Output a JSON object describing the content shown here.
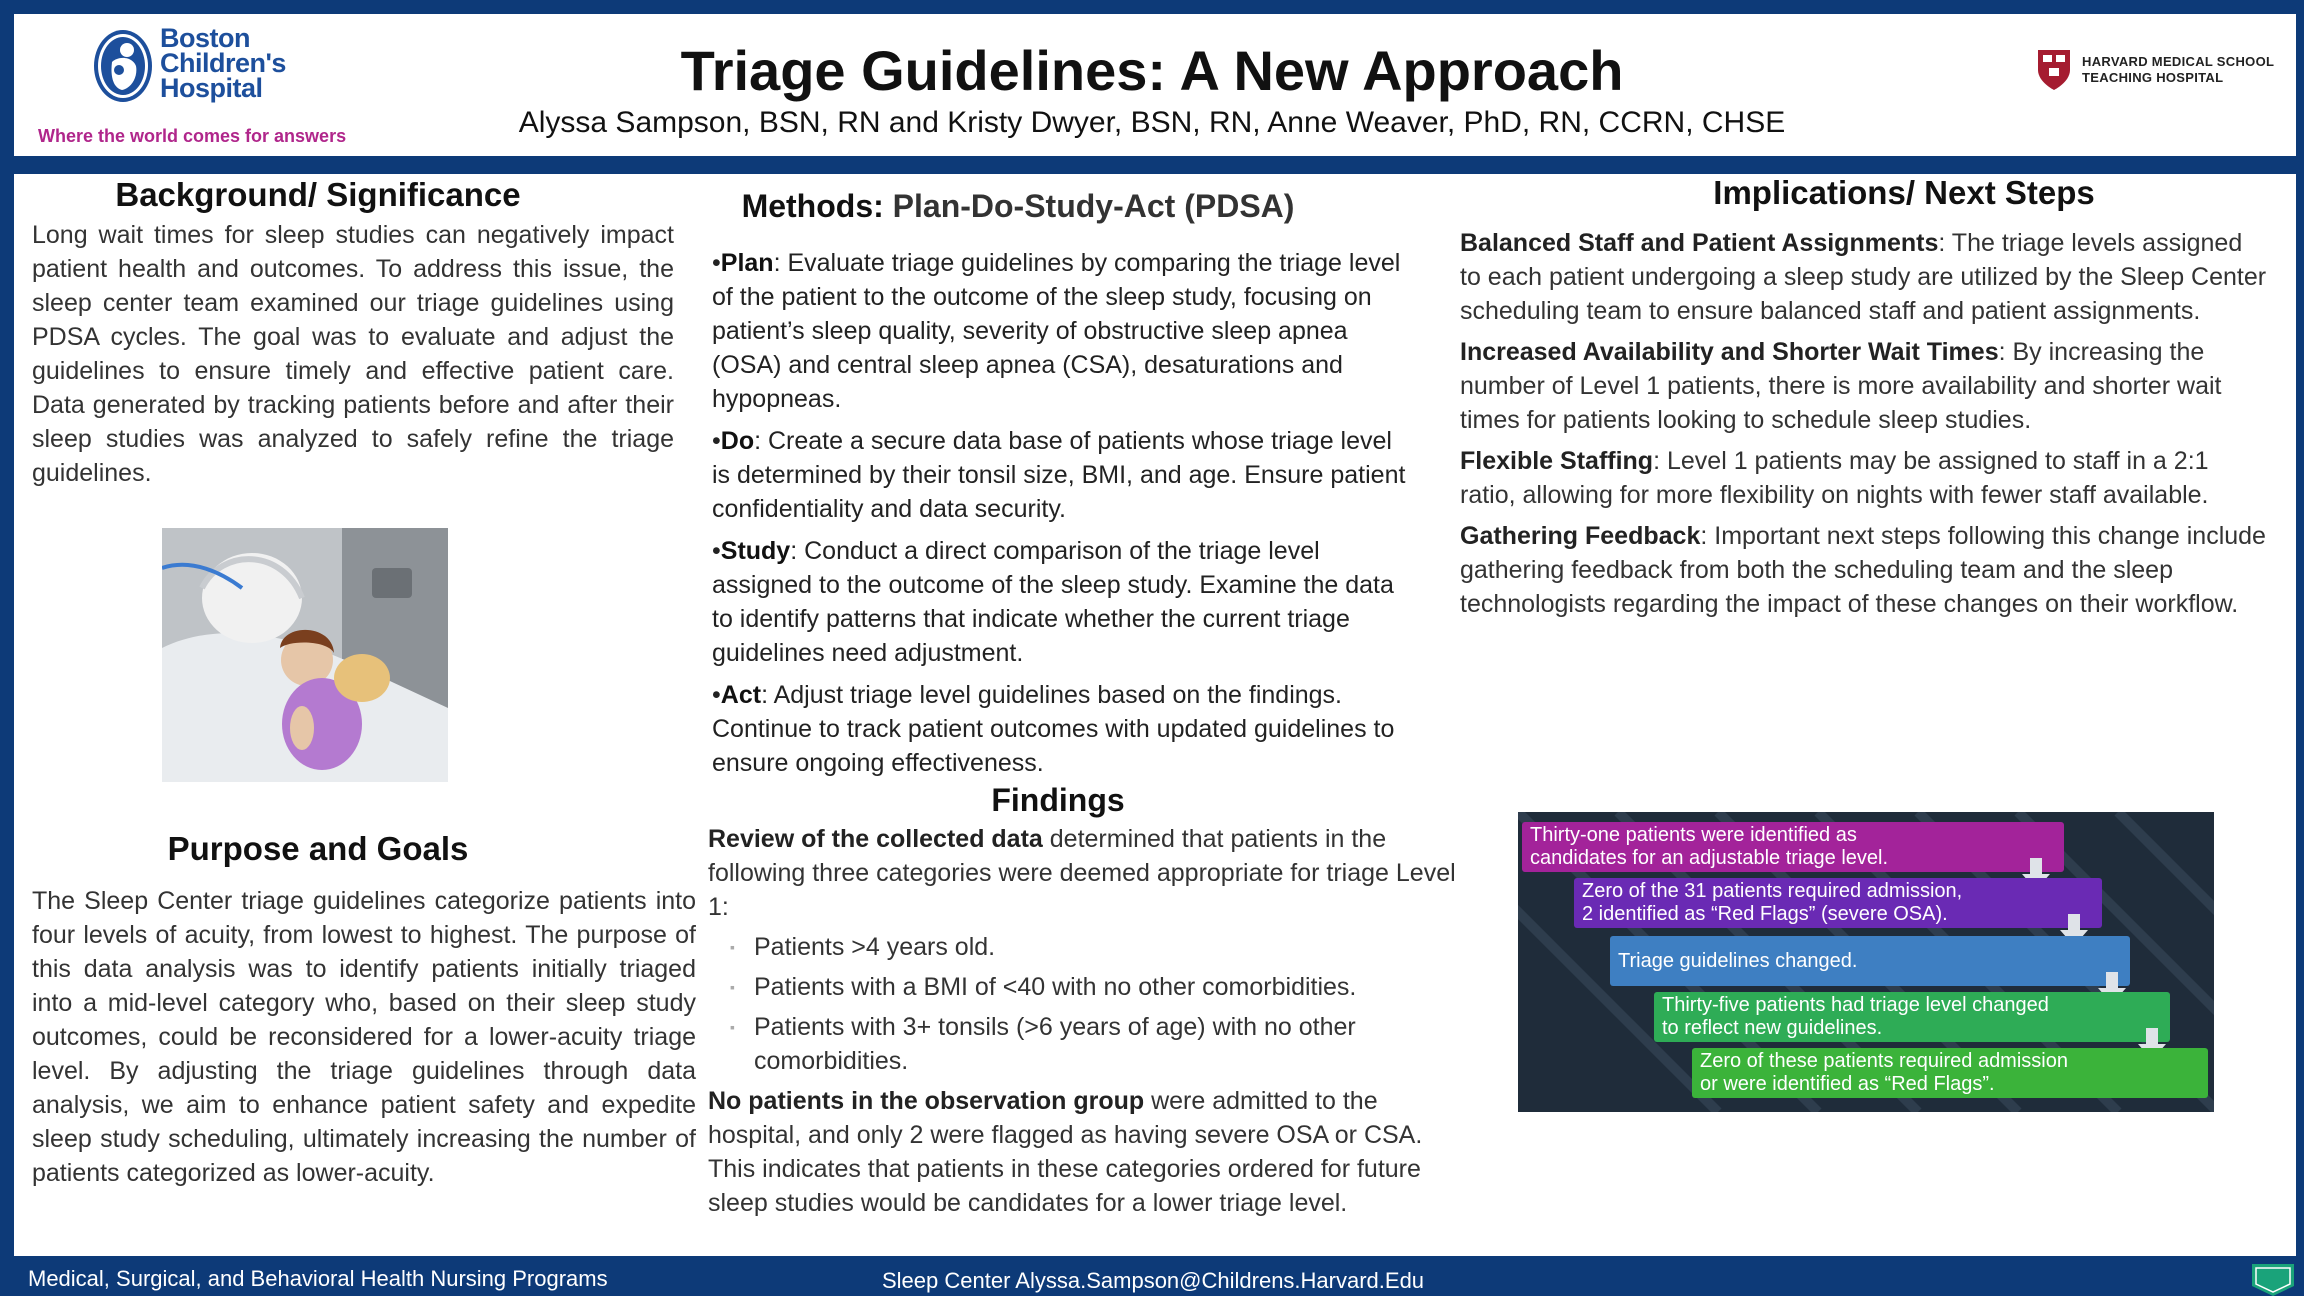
{
  "header": {
    "logo_lines": [
      "Boston",
      "Children's",
      "Hospital"
    ],
    "tagline": "Where the world comes for answers",
    "title": "Triage Guidelines: A New Approach",
    "authors": "Alyssa Sampson, BSN, RN and Kristy Dwyer, BSN, RN, Anne Weaver, PhD, RN, CCRN, CHSE",
    "hms_line1": "HARVARD MEDICAL SCHOOL",
    "hms_line2": "TEACHING HOSPITAL"
  },
  "background": {
    "heading": "Background/ Significance",
    "text": "Long wait times for sleep studies can negatively impact patient health and outcomes. To address this issue, the sleep center team examined our triage guidelines using PDSA cycles. The goal was to evaluate and adjust the guidelines to ensure timely and effective patient care. Data generated by tracking patients before and after their sleep studies was analyzed to safely refine the triage guidelines."
  },
  "purpose": {
    "heading": "Purpose and Goals",
    "text": "The Sleep Center triage guidelines categorize patients into four levels of acuity, from lowest to highest. The purpose of this data analysis was to identify patients initially triaged into a mid-level category who, based on their sleep study outcomes, could be reconsidered for a lower-acuity triage level. By adjusting the triage guidelines through data analysis, we aim to enhance patient safety and expedite sleep study scheduling, ultimately increasing the number of patients categorized as lower-acuity."
  },
  "methods": {
    "heading_bold": "Methods:",
    "heading_rest": "Plan-Do-Study-Act (PDSA)",
    "items": [
      {
        "term": "Plan",
        "text": ": Evaluate triage guidelines by comparing the triage level of the patient to the outcome of the sleep study, focusing on patient’s sleep quality, severity of obstructive sleep apnea (OSA) and central sleep apnea (CSA), desaturations and hypopneas."
      },
      {
        "term": "Do",
        "text": ": Create a secure data base of patients whose triage level is determined by their tonsil size, BMI, and age. Ensure patient confidentiality and data security."
      },
      {
        "term": "Study",
        "text": ": Conduct a direct comparison of the triage level assigned to the outcome of the sleep study. Examine the data to identify patterns that indicate whether the current triage guidelines need adjustment."
      },
      {
        "term": "Act",
        "text": ": Adjust triage level guidelines based on the findings. Continue to track patient outcomes with updated guidelines to ensure ongoing effectiveness."
      }
    ]
  },
  "findings": {
    "heading": "Findings",
    "intro_bold": "Review of the collected data",
    "intro_rest": " determined that patients in the following three categories were deemed appropriate for triage Level 1:",
    "bullets": [
      "Patients >4 years old.",
      "Patients with a BMI of <40 with no other comorbidities.",
      "Patients with 3+ tonsils (>6 years of age) with no other comorbidities."
    ],
    "outcome_bold": "No patients in the observation group",
    "outcome_rest": " were admitted to the hospital, and only 2 were flagged as having severe OSA or CSA. This indicates that patients in these categories ordered for future sleep studies would be candidates for a lower triage level."
  },
  "implications": {
    "heading": "Implications/ Next Steps",
    "items": [
      {
        "term": "Balanced Staff and Patient Assignments",
        "text": ": The triage levels assigned to each patient undergoing a sleep study are utilized by the Sleep Center scheduling team to ensure balanced staff and patient assignments."
      },
      {
        "term": "Increased Availability and Shorter Wait Times",
        "text": ": By increasing the number of Level 1 patients, there is more availability and shorter wait times for patients looking to schedule sleep studies."
      },
      {
        "term": "Flexible Staffing",
        "text": ": Level 1 patients may be assigned to staff in a 2:1 ratio, allowing for more flexibility on nights with fewer staff available."
      },
      {
        "term": "Gathering Feedback",
        "text": ": Important next steps following this change include gathering feedback from both the scheduling team and the sleep technologists regarding the impact of these changes on their workflow."
      }
    ]
  },
  "flow": {
    "colors": [
      "#a3239a",
      "#6a2ab4",
      "#3e7fc2",
      "#2eac56",
      "#3bb33a"
    ],
    "steps": [
      [
        "Thirty-one patients were identified as",
        "candidates for an  adjustable triage level."
      ],
      [
        "Zero of the 31 patients required admission,",
        "2 identified as “Red Flags” (severe OSA)."
      ],
      [
        "Triage guidelines changed."
      ],
      [
        "Thirty-five patients had triage level changed",
        "to reflect new guidelines."
      ],
      [
        "Zero of these patients required admission",
        "or were identified as “Red Flags”."
      ]
    ]
  },
  "footer": {
    "left": "Medical, Surgical, and Behavioral Health Nursing Programs",
    "center": "Sleep Center Alyssa.Sampson@Childrens.Harvard.Edu"
  }
}
